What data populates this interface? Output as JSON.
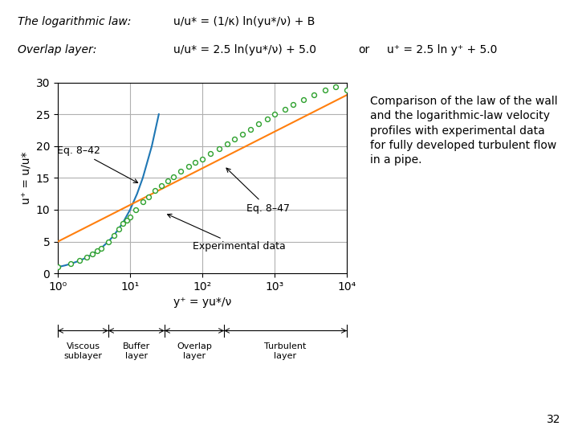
{
  "chart_data": {
    "type": "scatter",
    "equations": [
      [
        "The logarithmic law:",
        "u/u* = (1/κ) ln(yu*/ν) + B"
      ],
      [
        "Overlap layer:",
        "u/u* = 2.5 ln(yu*/ν) + 5.0",
        "or",
        "u⁺ = 2.5 ln y⁺ + 5.0"
      ]
    ],
    "x_label": "y⁺ = yu*/ν",
    "y_label": "u⁺ = u/u*",
    "log": "x",
    "grid": true,
    "xlim": [
      1,
      10000
    ],
    "ylim": [
      0,
      30
    ],
    "xticks": [
      {
        "value": 1,
        "label": "10⁰"
      },
      {
        "value": 10,
        "label": "10¹"
      },
      {
        "value": 100,
        "label": "10²"
      },
      {
        "value": 1000,
        "label": "10³"
      },
      {
        "value": 10000,
        "label": "10⁴"
      }
    ],
    "yticks": [
      0,
      5,
      10,
      15,
      20,
      25,
      30
    ],
    "series": [
      {
        "type": "line",
        "line_style": "solid",
        "x": [
          1,
          1.25,
          1.5,
          2,
          2.5,
          3,
          4,
          5,
          6,
          8,
          10,
          12.5,
          15,
          20,
          25
        ],
        "values": [
          1,
          1.25,
          1.5,
          2,
          2.5,
          3,
          4,
          5,
          6,
          8,
          10,
          12.5,
          15,
          20,
          25
        ]
      },
      {
        "type": "line",
        "line_style": "solid",
        "x": [
          1,
          10,
          100,
          1000,
          10000
        ],
        "values": [
          5.0,
          10.756462732,
          16.512925465,
          22.269388197,
          28.02585093
        ]
      },
      {
        "type": "scatter",
        "marker": "o",
        "x": [
          1.0,
          1.5,
          2.0,
          2.5,
          3.0,
          3.5,
          4.0,
          5.0,
          6.0,
          7.0,
          8.0,
          9.0,
          10.0,
          12.0,
          15.0,
          18.0,
          22.0,
          27.0,
          33.0,
          40.0,
          50.0,
          65.0,
          80.0,
          100.0,
          130.0,
          170.0,
          220.0,
          280.0,
          360.0,
          460.0,
          600.0,
          800.0,
          1000.0,
          1400.0,
          1800.0,
          2500.0,
          3500.0,
          5000.0,
          7000.0,
          10000.0
        ],
        "values": [
          1.0,
          1.5,
          2.0,
          2.5,
          3.0,
          3.5,
          4.0,
          5.0,
          6.0,
          7.0,
          7.8,
          8.4,
          8.9,
          10.0,
          11.2,
          12.0,
          13.0,
          13.8,
          14.5,
          15.2,
          16.0,
          16.8,
          17.5,
          18.0,
          18.8,
          19.6,
          20.4,
          21.1,
          21.9,
          22.6,
          23.5,
          24.3,
          25.0,
          25.8,
          26.5,
          27.3,
          28.0,
          28.8,
          29.3,
          28.8
        ]
      }
    ],
    "annotations": [
      {
        "text": "Eq. 8–42",
        "x": 14,
        "y": 14
      },
      {
        "text": "Eq. 8–47",
        "x": 200,
        "y": 16.9
      },
      {
        "text": "Experimental data",
        "x": 30,
        "y": 9.5
      }
    ],
    "layers": {
      "bounds": [
        1,
        5,
        30,
        200,
        10000
      ],
      "labels": [
        "Viscous\nsublayer",
        "Buffer\nlayer",
        "Overlap\nlayer",
        "Turbulent\nlayer"
      ]
    },
    "caption": "Comparison of the law of the wall\nand the logarithmic-law velocity\nprofiles with experimental data\nfor fully developed turbulent flow\nin a pipe.",
    "page_number": "32"
  }
}
